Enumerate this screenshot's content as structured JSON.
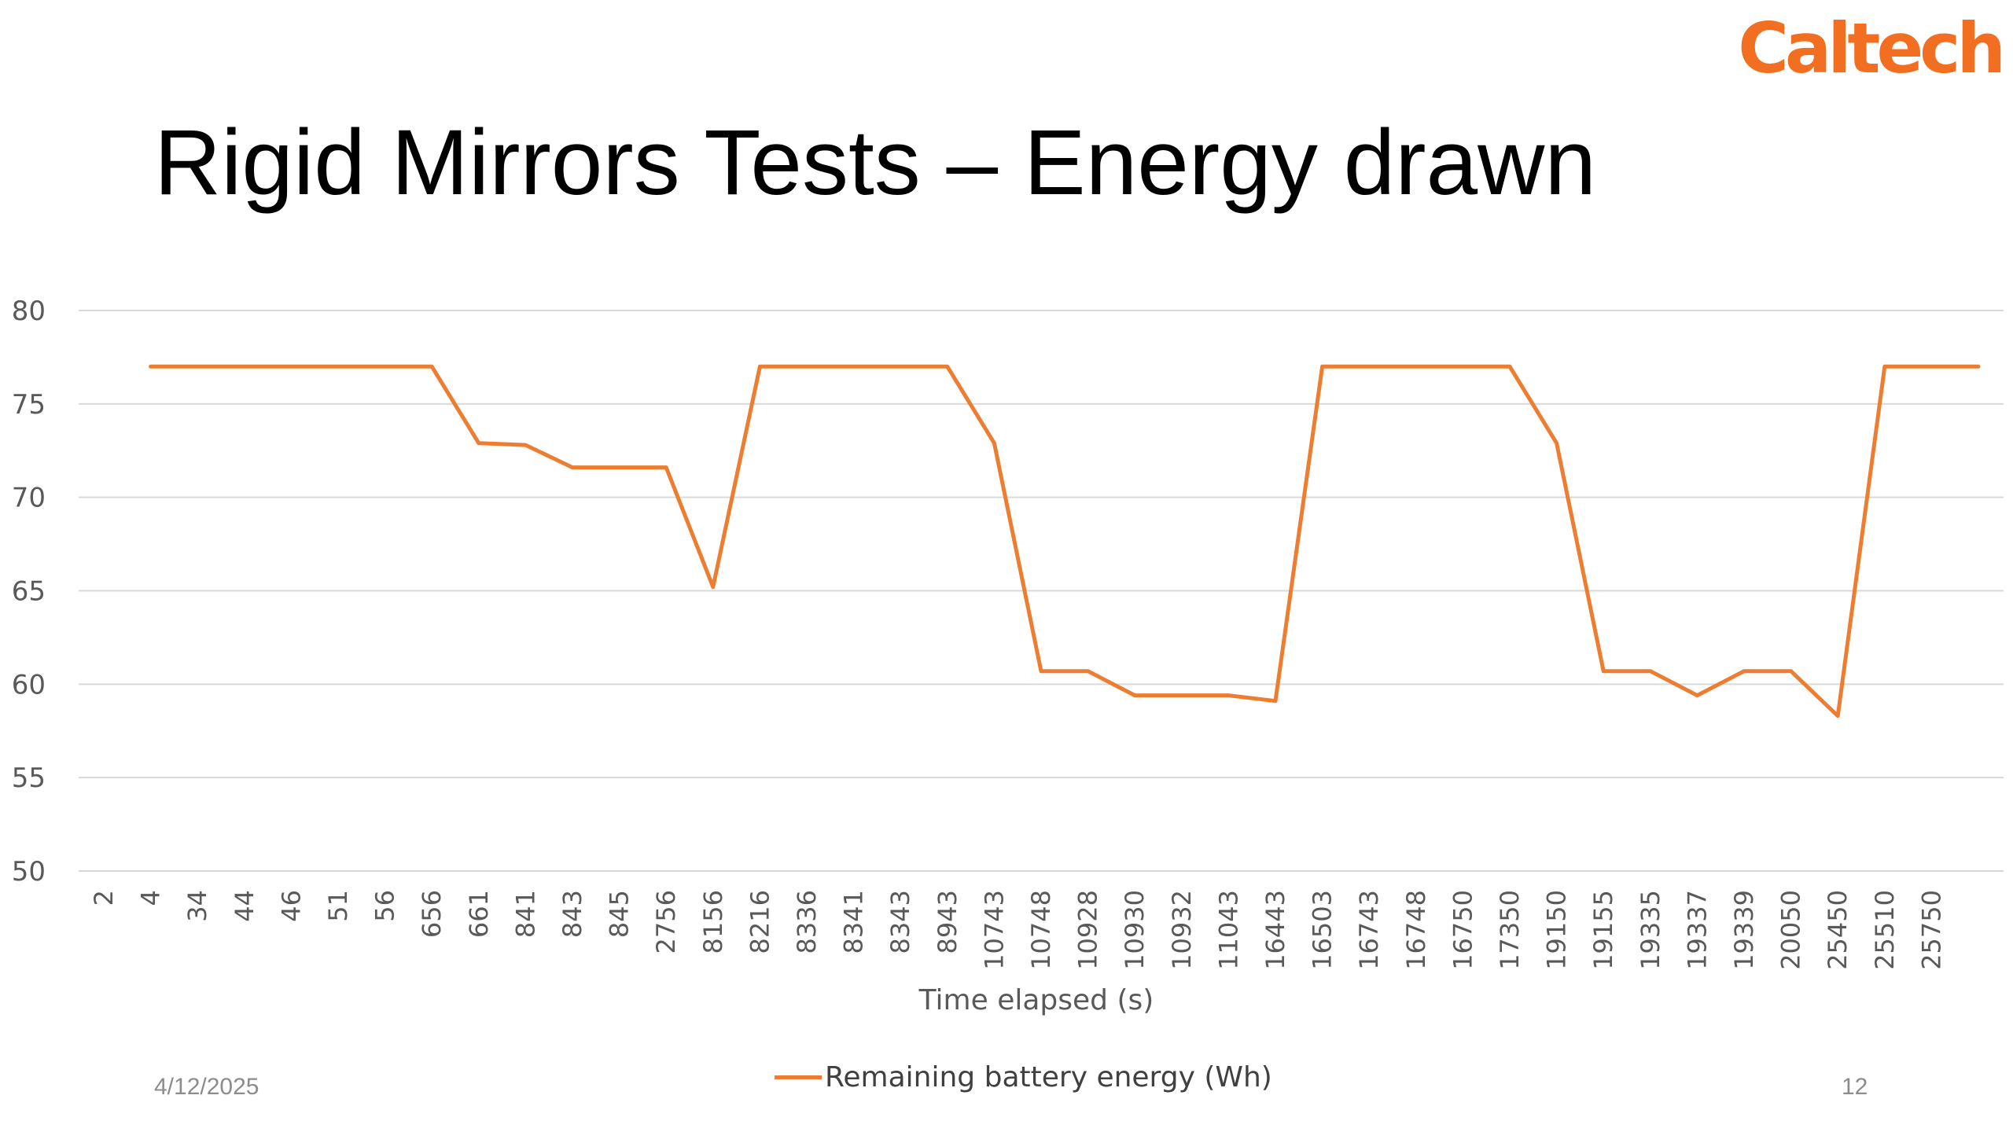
{
  "logo_text": "Caltech",
  "slide_title": "Rigid Mirrors Tests – Energy drawn",
  "footer": {
    "date": "4/12/2025",
    "page_number": "12"
  },
  "colors": {
    "series": "#ed7d31",
    "logo": "#f26f21",
    "grid": "#d9d9d9",
    "axis_text": "#595959"
  },
  "chart_data": {
    "type": "line",
    "xlabel": "Time elapsed (s)",
    "ylabel": "",
    "ylim": [
      50,
      80
    ],
    "yticks": [
      50,
      55,
      60,
      65,
      70,
      75,
      80
    ],
    "grid": true,
    "legend_position": "bottom",
    "x": [
      "2",
      "4",
      "34",
      "44",
      "46",
      "51",
      "56",
      "656",
      "661",
      "841",
      "843",
      "845",
      "2756",
      "8156",
      "8216",
      "8336",
      "8341",
      "8343",
      "8943",
      "10743",
      "10748",
      "10928",
      "10930",
      "10932",
      "11043",
      "16443",
      "16503",
      "16743",
      "16748",
      "16750",
      "17350",
      "19150",
      "19155",
      "19335",
      "19337",
      "19339",
      "20050",
      "25450",
      "25510",
      "25750"
    ],
    "series": [
      {
        "name": "Remaining battery energy (Wh)",
        "x_start_index": 1,
        "values": [
          77,
          77,
          77,
          77,
          77,
          77,
          77,
          72.9,
          72.8,
          71.6,
          71.6,
          71.6,
          65.2,
          77,
          77,
          77,
          77,
          77,
          72.9,
          60.7,
          60.7,
          59.4,
          59.4,
          59.4,
          59.1,
          77,
          77,
          77,
          77,
          77,
          72.9,
          60.7,
          60.7,
          59.4,
          60.7,
          60.7,
          58.3,
          77,
          77,
          77
        ]
      }
    ]
  }
}
